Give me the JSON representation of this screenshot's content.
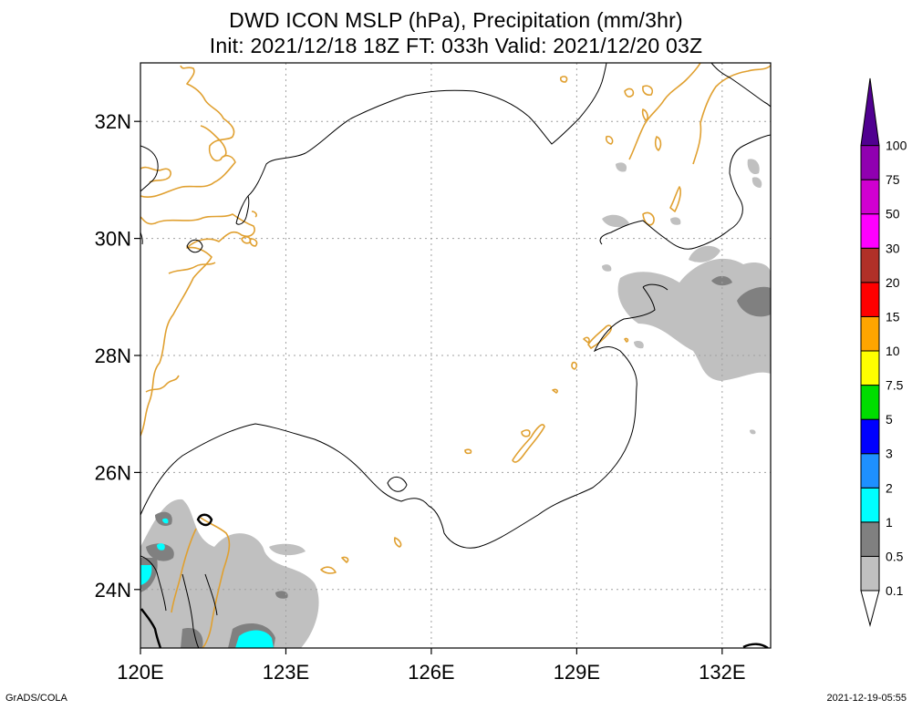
{
  "title": {
    "line1": "DWD ICON MSLP (hPa), Precipitation (mm/3hr)",
    "line2": "Init: 2021/12/18 18Z  FT: 033h  Valid: 2021/12/20 03Z"
  },
  "map": {
    "lon_range": [
      120,
      133
    ],
    "lat_range": [
      23,
      33
    ],
    "lon_ticks": [
      {
        "value": 120,
        "label": "120E"
      },
      {
        "value": 123,
        "label": "123E"
      },
      {
        "value": 126,
        "label": "126E"
      },
      {
        "value": 129,
        "label": "129E"
      },
      {
        "value": 132,
        "label": "132E"
      }
    ],
    "lat_ticks": [
      {
        "value": 24,
        "label": "24N"
      },
      {
        "value": 26,
        "label": "26N"
      },
      {
        "value": 28,
        "label": "28N"
      },
      {
        "value": 30,
        "label": "30N"
      },
      {
        "value": 32,
        "label": "32N"
      }
    ],
    "grid": true,
    "colors": {
      "coastline": "#e0a030",
      "isobar": "#000000",
      "grid": "#a0a0a0"
    }
  },
  "colorbar": {
    "levels": [
      {
        "label": "0.1",
        "color": "#c0c0c0"
      },
      {
        "label": "0.5",
        "color": "#808080"
      },
      {
        "label": "1",
        "color": "#00ffff"
      },
      {
        "label": "2",
        "color": "#1e90ff"
      },
      {
        "label": "3",
        "color": "#0000ff"
      },
      {
        "label": "5",
        "color": "#00dd00"
      },
      {
        "label": "7.5",
        "color": "#ffff00"
      },
      {
        "label": "10",
        "color": "#ffa500"
      },
      {
        "label": "15",
        "color": "#ff0000"
      },
      {
        "label": "20",
        "color": "#b03028"
      },
      {
        "label": "30",
        "color": "#ff00ff"
      },
      {
        "label": "50",
        "color": "#d000d0"
      },
      {
        "label": "75",
        "color": "#9000b0"
      },
      {
        "label": "100",
        "color": "#500090"
      }
    ]
  },
  "footer": {
    "credit": "GrADS/COLA",
    "timestamp": "2021-12-19-05:55"
  }
}
